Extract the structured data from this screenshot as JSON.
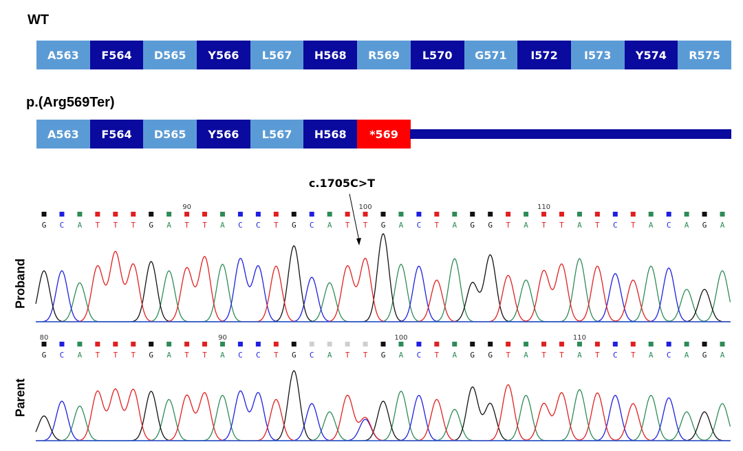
{
  "wt": {
    "label": "WT",
    "residues": [
      "A563",
      "F564",
      "D565",
      "Y566",
      "L567",
      "H568",
      "R569",
      "L570",
      "G571",
      "I572",
      "I573",
      "Y574",
      "R575"
    ]
  },
  "mutant": {
    "label": "p.(Arg569Ter)",
    "residues": [
      "A563",
      "F564",
      "D565",
      "Y566",
      "L567",
      "H568"
    ],
    "stop_label": "*569"
  },
  "annotation": {
    "label": "c.1705C>T"
  },
  "colors": {
    "light": "#5b9bd5",
    "dark": "#0a0a9e",
    "stop": "#ff0000",
    "A": "#2e8b57",
    "C": "#1f1fe0",
    "G": "#111111",
    "T": "#e02020"
  },
  "chart_data": {
    "type": "line",
    "sequence": [
      "G",
      "C",
      "A",
      "T",
      "T",
      "T",
      "G",
      "A",
      "T",
      "T",
      "A",
      "C",
      "C",
      "T",
      "G",
      "C",
      "A",
      "T",
      "T",
      "G",
      "A",
      "C",
      "T",
      "A",
      "G",
      "G",
      "T",
      "A",
      "T",
      "T",
      "A",
      "T",
      "C",
      "T",
      "A",
      "C",
      "A",
      "G",
      "A"
    ],
    "tracks": [
      {
        "name": "Proband",
        "position_labels": [
          {
            "index": 8,
            "label": "90"
          },
          {
            "index": 18,
            "label": "100"
          },
          {
            "index": 28,
            "label": "110"
          }
        ]
      },
      {
        "name": "Parent",
        "position_labels": [
          {
            "index": 0,
            "label": "80"
          },
          {
            "index": 10,
            "label": "90"
          },
          {
            "index": 20,
            "label": "100"
          },
          {
            "index": 30,
            "label": "110"
          }
        ]
      }
    ],
    "proband_heights": [
      0.55,
      0.55,
      0.42,
      0.6,
      0.75,
      0.62,
      0.65,
      0.55,
      0.58,
      0.7,
      0.62,
      0.68,
      0.6,
      0.6,
      0.82,
      0.48,
      0.42,
      0.6,
      0.68,
      0.95,
      0.62,
      0.6,
      0.45,
      0.68,
      0.42,
      0.72,
      0.5,
      0.45,
      0.55,
      0.62,
      0.68,
      0.6,
      0.52,
      0.45,
      0.6,
      0.58,
      0.35,
      0.35,
      0.55
    ],
    "parent_heights": [
      0.3,
      0.48,
      0.42,
      0.6,
      0.62,
      0.62,
      0.6,
      0.5,
      0.55,
      0.58,
      0.55,
      0.6,
      0.58,
      0.5,
      0.85,
      0.45,
      0.35,
      0.55,
      0.28,
      0.48,
      0.6,
      0.55,
      0.5,
      0.38,
      0.65,
      0.45,
      0.68,
      0.55,
      0.45,
      0.58,
      0.62,
      0.58,
      0.55,
      0.45,
      0.55,
      0.52,
      0.35,
      0.35,
      0.45
    ],
    "het_secondary": [
      {
        "index": 18,
        "base": "C",
        "height": 0.26
      }
    ]
  }
}
